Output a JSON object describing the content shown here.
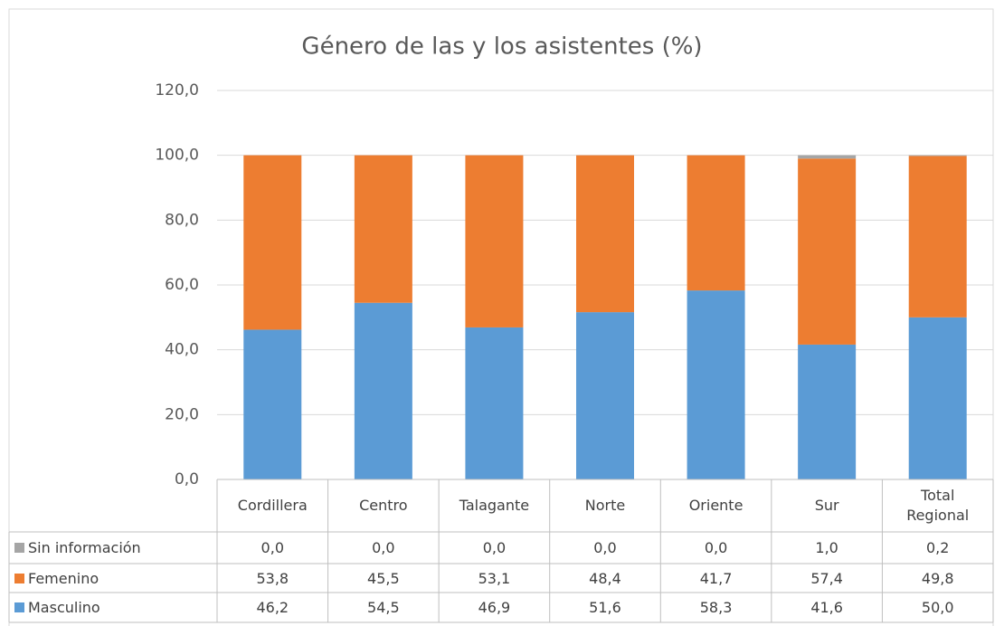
{
  "chart_data": {
    "type": "stacked_bar",
    "title": "Género de las y los asistentes (%)",
    "categories": [
      "Cordillera",
      "Centro",
      "Talagante",
      "Norte",
      "Oriente",
      "Sur",
      "Total Regional"
    ],
    "series": [
      {
        "name": "Masculino",
        "color": "#5b9bd5",
        "values": [
          46.2,
          54.5,
          46.9,
          51.6,
          58.3,
          41.6,
          50.0
        ],
        "value_labels": [
          "46,2",
          "54,5",
          "46,9",
          "51,6",
          "58,3",
          "41,6",
          "50,0"
        ]
      },
      {
        "name": "Femenino",
        "color": "#ed7d31",
        "values": [
          53.8,
          45.5,
          53.1,
          48.4,
          41.7,
          57.4,
          49.8
        ],
        "value_labels": [
          "53,8",
          "45,5",
          "53,1",
          "48,4",
          "41,7",
          "57,4",
          "49,8"
        ]
      },
      {
        "name": "Sin información",
        "color": "#a5a5a5",
        "values": [
          0.0,
          0.0,
          0.0,
          0.0,
          0.0,
          1.0,
          0.2
        ],
        "value_labels": [
          "0,0",
          "0,0",
          "0,0",
          "0,0",
          "0,0",
          "1,0",
          "0,2"
        ]
      }
    ],
    "ylim": [
      0,
      120
    ],
    "yticks": [
      {
        "value": 0,
        "label": "0,0"
      },
      {
        "value": 20,
        "label": "20,0"
      },
      {
        "value": 40,
        "label": "40,0"
      },
      {
        "value": 60,
        "label": "60,0"
      },
      {
        "value": 80,
        "label": "80,0"
      },
      {
        "value": 100,
        "label": "100,0"
      },
      {
        "value": 120,
        "label": "120,0"
      }
    ],
    "grid": true
  }
}
